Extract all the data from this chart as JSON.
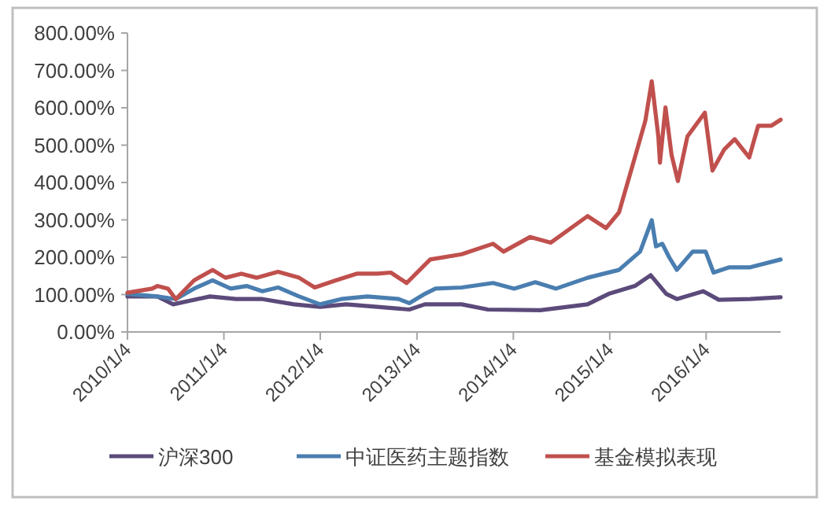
{
  "chart_data": {
    "type": "line",
    "legend": "bottom",
    "grid": false,
    "marker": "none",
    "line_style": "solid",
    "xlim": [
      "2010-01-04",
      "2016-10-12"
    ],
    "xticks": [
      {
        "value": "2010-01-04",
        "label": "2010/1/4"
      },
      {
        "value": "2011-01-04",
        "label": "2011/1/4"
      },
      {
        "value": "2012-01-04",
        "label": "2012/1/4"
      },
      {
        "value": "2013-01-04",
        "label": "2013/1/4"
      },
      {
        "value": "2014-01-04",
        "label": "2014/1/4"
      },
      {
        "value": "2015-01-04",
        "label": "2015/1/4"
      },
      {
        "value": "2016-01-04",
        "label": "2016/1/4"
      }
    ],
    "ylim": [
      0,
      800
    ],
    "yticks": [
      {
        "value": 0,
        "label": "0.00%"
      },
      {
        "value": 100,
        "label": "100.00%"
      },
      {
        "value": 200,
        "label": "200.00%"
      },
      {
        "value": 300,
        "label": "300.00%"
      },
      {
        "value": 400,
        "label": "400.00%"
      },
      {
        "value": 500,
        "label": "500.00%"
      },
      {
        "value": 600,
        "label": "600.00%"
      },
      {
        "value": 700,
        "label": "700.00%"
      },
      {
        "value": 800,
        "label": "800.00%"
      }
    ],
    "series": [
      {
        "name": "沪深300",
        "color": "#5b4a7a",
        "x": [
          "2010-01-04",
          "2010-04-27",
          "2010-06-26",
          "2010-11-12",
          "2011-02-19",
          "2011-05-30",
          "2011-09-26",
          "2012-01-03",
          "2012-04-11",
          "2012-08-08",
          "2012-12-06",
          "2013-02-03",
          "2013-06-22",
          "2013-09-30",
          "2014-04-16",
          "2014-10-12",
          "2014-12-31",
          "2015-04-09",
          "2015-06-08",
          "2015-08-06",
          "2015-09-15",
          "2015-12-24",
          "2016-02-21",
          "2016-06-19",
          "2016-10-12"
        ],
        "values": [
          95,
          95,
          74,
          95,
          88,
          88,
          74,
          67,
          74,
          67,
          60,
          74,
          74,
          60,
          58,
          74,
          102,
          123,
          152,
          102,
          88,
          109,
          86,
          88,
          93
        ]
      },
      {
        "name": "中证医药主题指数",
        "color": "#4a7eb0",
        "x": [
          "2010-01-04",
          "2010-04-27",
          "2010-07-06",
          "2010-09-13",
          "2010-11-22",
          "2011-01-30",
          "2011-03-31",
          "2011-05-30",
          "2011-07-28",
          "2011-10-16",
          "2012-01-03",
          "2012-03-23",
          "2012-06-30",
          "2012-10-27",
          "2012-12-06",
          "2013-02-03",
          "2013-03-15",
          "2013-06-22",
          "2013-10-19",
          "2014-01-07",
          "2014-03-28",
          "2014-06-15",
          "2014-10-12",
          "2015-02-08",
          "2015-04-29",
          "2015-06-12",
          "2015-06-28",
          "2015-07-22",
          "2015-08-16",
          "2015-09-15",
          "2015-11-14",
          "2016-01-02",
          "2016-02-01",
          "2016-04-01",
          "2016-06-19",
          "2016-10-12"
        ],
        "values": [
          102,
          95,
          88,
          116,
          138,
          116,
          123,
          109,
          119,
          95,
          74,
          88,
          95,
          88,
          77,
          102,
          116,
          119,
          131,
          116,
          133,
          116,
          145,
          166,
          215,
          299,
          229,
          236,
          201,
          166,
          215,
          215,
          159,
          173,
          173,
          194
        ]
      },
      {
        "name": "基金模拟表现",
        "color": "#c0504d",
        "x": [
          "2010-01-04",
          "2010-04-08",
          "2010-04-27",
          "2010-06-06",
          "2010-07-06",
          "2010-09-13",
          "2010-11-22",
          "2011-01-10",
          "2011-03-11",
          "2011-05-09",
          "2011-07-28",
          "2011-10-16",
          "2011-12-14",
          "2012-03-02",
          "2012-05-21",
          "2012-08-08",
          "2012-09-27",
          "2012-11-26",
          "2013-02-23",
          "2013-06-22",
          "2013-10-19",
          "2013-11-28",
          "2014-03-08",
          "2014-05-26",
          "2014-10-12",
          "2014-12-21",
          "2015-02-08",
          "2015-04-09",
          "2015-05-19",
          "2015-06-12",
          "2015-07-07",
          "2015-07-13",
          "2015-08-03",
          "2015-08-26",
          "2015-09-19",
          "2015-10-25",
          "2015-12-30",
          "2016-01-28",
          "2016-03-12",
          "2016-04-21",
          "2016-06-15",
          "2016-07-19",
          "2016-09-07",
          "2016-10-12"
        ],
        "values": [
          105,
          116,
          123,
          116,
          88,
          138,
          166,
          145,
          156,
          145,
          161,
          145,
          119,
          138,
          156,
          156,
          159,
          131,
          194,
          208,
          236,
          215,
          254,
          239,
          310,
          278,
          320,
          467,
          566,
          671,
          523,
          453,
          601,
          474,
          404,
          523,
          587,
          432,
          488,
          516,
          467,
          552,
          552,
          568
        ]
      }
    ]
  }
}
